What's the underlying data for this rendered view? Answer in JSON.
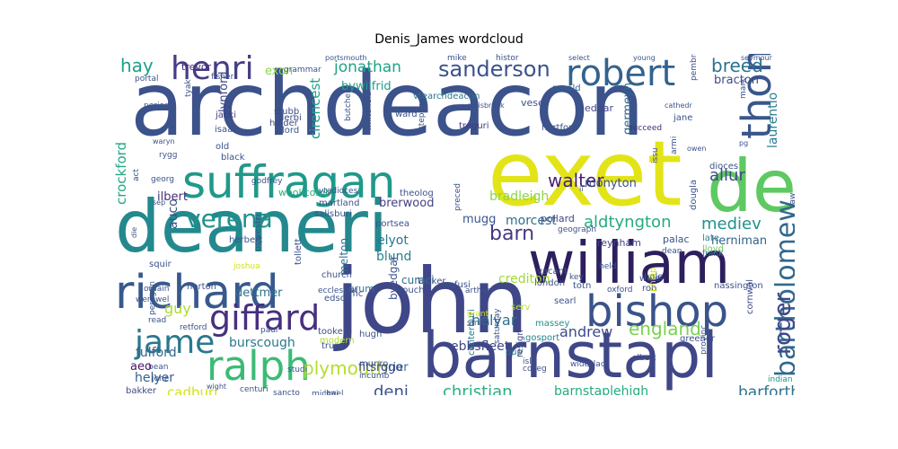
{
  "chart_data": {
    "type": "wordcloud",
    "title": "Denis_James wordcloud",
    "words": [
      {
        "text": "archdeacon",
        "color": "#3b528b"
      },
      {
        "text": "deaneri",
        "color": "#23898e"
      },
      {
        "text": "john",
        "color": "#3f4788"
      },
      {
        "text": "exet",
        "color": "#e3e418"
      },
      {
        "text": "barnstapl",
        "color": "#3f4788"
      },
      {
        "text": "william",
        "color": "#2d1f5e"
      },
      {
        "text": "suffragan",
        "color": "#1f998a"
      },
      {
        "text": "de",
        "color": "#5ec962"
      },
      {
        "text": "thoma",
        "color": "#39568c"
      },
      {
        "text": "richard",
        "color": "#38598c"
      },
      {
        "text": "bishop",
        "color": "#3a538b"
      },
      {
        "text": "ralph",
        "color": "#3bbb75"
      },
      {
        "text": "robert",
        "color": "#33638d"
      },
      {
        "text": "henri",
        "color": "#433e85"
      },
      {
        "text": "giffard",
        "color": "#46307e"
      },
      {
        "text": "jame",
        "color": "#2a788e"
      },
      {
        "text": "bartholomew",
        "color": "#31688e"
      },
      {
        "text": "verena",
        "color": "#20928c"
      },
      {
        "text": "plymouth",
        "color": "#b5de2b"
      },
      {
        "text": "roger",
        "color": "#404688"
      },
      {
        "text": "sanderson",
        "color": "#3b528b"
      },
      {
        "text": "england",
        "color": "#7ad151"
      },
      {
        "text": "barn",
        "color": "#453882"
      },
      {
        "text": "breed",
        "color": "#2c728e"
      },
      {
        "text": "jonathan",
        "color": "#20a386"
      },
      {
        "text": "christian",
        "color": "#29af7f"
      },
      {
        "text": "barforth",
        "color": "#2c728e"
      },
      {
        "text": "deni",
        "color": "#3b528b"
      },
      {
        "text": "walter",
        "color": "#481f70"
      },
      {
        "text": "guy",
        "color": "#addc30"
      },
      {
        "text": "hay",
        "color": "#1fa088"
      },
      {
        "text": "andrew",
        "color": "#3e4a89"
      },
      {
        "text": "mediev",
        "color": "#21918c"
      },
      {
        "text": "allur",
        "color": "#3e4989"
      },
      {
        "text": "laurentio",
        "color": "#287c8e"
      },
      {
        "text": "cadburi",
        "color": "#d2e21b"
      },
      {
        "text": "ebbsfleet",
        "color": "#3e4989"
      },
      {
        "text": "barnstaplehigh",
        "color": "#25ab82"
      },
      {
        "text": "aldtyngton",
        "color": "#25ab82"
      },
      {
        "text": "auco",
        "color": "#3b528b"
      },
      {
        "text": "helyar",
        "color": "#2c738e"
      },
      {
        "text": "crockford",
        "color": "#22a785"
      },
      {
        "text": "cirencest",
        "color": "#1fa187"
      },
      {
        "text": "bradleigh",
        "color": "#8bd646"
      },
      {
        "text": "burscough",
        "color": "#2a788e"
      },
      {
        "text": "helyer",
        "color": "#35608d"
      },
      {
        "text": "fulford",
        "color": "#33628d"
      },
      {
        "text": "elyot",
        "color": "#29798e"
      },
      {
        "text": "blund",
        "color": "#27808e"
      },
      {
        "text": "morcest",
        "color": "#2e6e8e"
      },
      {
        "text": "bracton",
        "color": "#3e4a89"
      },
      {
        "text": "brerwood",
        "color": "#433e85"
      },
      {
        "text": "ilbert",
        "color": "#46307e"
      },
      {
        "text": "grier",
        "color": "#2d718e"
      },
      {
        "text": "monyton",
        "color": "#3b528b"
      },
      {
        "text": "crediton",
        "color": "#a0da39"
      },
      {
        "text": "herniman",
        "color": "#33638d"
      },
      {
        "text": "exon",
        "color": "#8bd646"
      },
      {
        "text": "lynford",
        "color": "#3f4788"
      },
      {
        "text": "bywilfrid",
        "color": "#1f9e89"
      },
      {
        "text": "dettmer",
        "color": "#2e6f8e"
      },
      {
        "text": "aeo",
        "color": "#481769"
      },
      {
        "text": "mugg",
        "color": "#39568c"
      },
      {
        "text": "fitsrogo",
        "color": "#424086"
      },
      {
        "text": "germeyn",
        "color": "#32658e"
      },
      {
        "text": "curaci",
        "color": "#2e6f8e"
      },
      {
        "text": "byedgar",
        "color": "#3b528b"
      },
      {
        "text": "melton",
        "color": "#2c738e"
      },
      {
        "text": "trevor",
        "color": "#482677"
      },
      {
        "text": "bakker",
        "color": "#3e4a89"
      },
      {
        "text": "woollcomb",
        "color": "#27ad81"
      },
      {
        "text": "vtearchdeacon",
        "color": "#2a788e"
      },
      {
        "text": "pollard",
        "color": "#3f4788"
      },
      {
        "text": "reynham",
        "color": "#424086"
      },
      {
        "text": "palac",
        "color": "#3b528b"
      },
      {
        "text": "wele",
        "color": "#3d4d8a"
      },
      {
        "text": "gosport",
        "color": "#26828e"
      },
      {
        "text": "oup",
        "color": "#2d718e"
      },
      {
        "text": "hugh",
        "color": "#3b528b"
      },
      {
        "text": "orum",
        "color": "#2c738e"
      },
      {
        "text": "edgar",
        "color": "#404688"
      },
      {
        "text": "vesey",
        "color": "#3b528b"
      },
      {
        "text": "jacki",
        "color": "#453882"
      },
      {
        "text": "isaac",
        "color": "#3b528b"
      },
      {
        "text": "lord",
        "color": "#39568c"
      },
      {
        "text": "derbi",
        "color": "#3e4a89"
      },
      {
        "text": "stubb",
        "color": "#3e4a89"
      },
      {
        "text": "holder",
        "color": "#3e4a89"
      },
      {
        "text": "ward",
        "color": "#3b528b"
      },
      {
        "text": "treguri",
        "color": "#453882"
      },
      {
        "text": "ronald",
        "color": "#33638d"
      },
      {
        "text": "hertford",
        "color": "#3b528b"
      },
      {
        "text": "jane",
        "color": "#3b528b"
      },
      {
        "text": "succeed",
        "color": "#482878"
      },
      {
        "text": "dougla",
        "color": "#3b528b"
      },
      {
        "text": "late",
        "color": "#25848e"
      },
      {
        "text": "lloyd",
        "color": "#6ccd5a"
      },
      {
        "text": "frank",
        "color": "#2a788e"
      },
      {
        "text": "nassington",
        "color": "#3b528b"
      },
      {
        "text": "cornwal",
        "color": "#3e4a89"
      },
      {
        "text": "greener",
        "color": "#3b528b"
      },
      {
        "text": "provinc",
        "color": "#3b528b"
      },
      {
        "text": "albert",
        "color": "#3e4a89"
      },
      {
        "text": "indian",
        "color": "#20928c"
      },
      {
        "text": "wideslad",
        "color": "#3b528b"
      },
      {
        "text": "massey",
        "color": "#21918c"
      },
      {
        "text": "searl",
        "color": "#3b528b"
      },
      {
        "text": "rob",
        "color": "#3b528b"
      },
      {
        "text": "hole",
        "color": "#3b528b"
      },
      {
        "text": "philip",
        "color": "#d2e21b"
      },
      {
        "text": "held",
        "color": "#3b528b"
      },
      {
        "text": "dean",
        "color": "#3b528b"
      },
      {
        "text": "oxford",
        "color": "#3b528b"
      },
      {
        "text": "totn",
        "color": "#3b528b"
      },
      {
        "text": "london",
        "color": "#3b528b"
      },
      {
        "text": "vacant",
        "color": "#3b528b"
      },
      {
        "text": "key",
        "color": "#3b528b"
      },
      {
        "text": "geograph",
        "color": "#3b528b"
      },
      {
        "text": "resign",
        "color": "#3e4a89"
      },
      {
        "text": "serv",
        "color": "#b5de2b"
      },
      {
        "text": "saturday",
        "color": "#3b528b"
      },
      {
        "text": "canterburi",
        "color": "#2a788e"
      },
      {
        "text": "grant",
        "color": "#d2e21b"
      },
      {
        "text": "smith",
        "color": "#3b528b"
      },
      {
        "text": "isl",
        "color": "#3b528b"
      },
      {
        "text": "colleg",
        "color": "#3b528b"
      },
      {
        "text": "trefusi",
        "color": "#3b528b"
      },
      {
        "text": "arthur",
        "color": "#3b528b"
      },
      {
        "text": "zouch",
        "color": "#3b528b"
      },
      {
        "text": "tucker",
        "color": "#3b528b"
      },
      {
        "text": "offic",
        "color": "#3b528b"
      },
      {
        "text": "church",
        "color": "#3b528b"
      },
      {
        "text": "edson",
        "color": "#3b528b"
      },
      {
        "text": "tooker",
        "color": "#3b528b"
      },
      {
        "text": "modern",
        "color": "#addc30"
      },
      {
        "text": "truro",
        "color": "#3b528b"
      },
      {
        "text": "munro",
        "color": "#3b528b"
      },
      {
        "text": "incumb",
        "color": "#3b528b"
      },
      {
        "text": "sancto",
        "color": "#3b528b"
      },
      {
        "text": "michael",
        "color": "#3b528b"
      },
      {
        "text": "lewi",
        "color": "#3b528b"
      },
      {
        "text": "centuri",
        "color": "#3b528b"
      },
      {
        "text": "studi",
        "color": "#3b528b"
      },
      {
        "text": "bean",
        "color": "#3b528b"
      },
      {
        "text": "jone",
        "color": "#3b528b"
      },
      {
        "text": "wight",
        "color": "#3b528b"
      },
      {
        "text": "werewel",
        "color": "#3b528b"
      },
      {
        "text": "retford",
        "color": "#3b528b"
      },
      {
        "text": "read",
        "color": "#3b528b"
      },
      {
        "text": "ordain",
        "color": "#3b528b"
      },
      {
        "text": "squir",
        "color": "#3b528b"
      },
      {
        "text": "norton",
        "color": "#3b528b"
      },
      {
        "text": "joshua",
        "color": "#d2e21b"
      },
      {
        "text": "herbert",
        "color": "#3b528b"
      },
      {
        "text": "ecclesiast",
        "color": "#3b528b"
      },
      {
        "text": "peregrin",
        "color": "#3b528b"
      },
      {
        "text": "salisburi",
        "color": "#3b528b"
      },
      {
        "text": "oswestri",
        "color": "#3b528b"
      },
      {
        "text": "tollett",
        "color": "#3b528b"
      },
      {
        "text": "portsea",
        "color": "#3b528b"
      },
      {
        "text": "martland",
        "color": "#3b528b"
      },
      {
        "text": "vtedioces",
        "color": "#3b528b"
      },
      {
        "text": "theolog",
        "color": "#3b528b"
      },
      {
        "text": "preced",
        "color": "#3b528b"
      },
      {
        "text": "act",
        "color": "#3b528b"
      },
      {
        "text": "sep",
        "color": "#3b528b"
      },
      {
        "text": "georg",
        "color": "#3b528b"
      },
      {
        "text": "rygg",
        "color": "#3b528b"
      },
      {
        "text": "waryn",
        "color": "#3b528b"
      },
      {
        "text": "old",
        "color": "#3b528b"
      },
      {
        "text": "black",
        "color": "#3b528b"
      },
      {
        "text": "godfrey",
        "color": "#3b528b"
      },
      {
        "text": "period",
        "color": "#3b528b"
      },
      {
        "text": "tyak",
        "color": "#3b528b"
      },
      {
        "text": "fisher",
        "color": "#3b528b"
      },
      {
        "text": "portal",
        "color": "#3b528b"
      },
      {
        "text": "grammar",
        "color": "#3b528b"
      },
      {
        "text": "portsmouth",
        "color": "#3b528b"
      },
      {
        "text": "butcher",
        "color": "#3b528b"
      },
      {
        "text": "whitefield",
        "color": "#3b528b"
      },
      {
        "text": "mike",
        "color": "#3b528b"
      },
      {
        "text": "histor",
        "color": "#3b528b"
      },
      {
        "text": "select",
        "color": "#3b528b"
      },
      {
        "text": "young",
        "color": "#3b528b"
      },
      {
        "text": "seymour",
        "color": "#3b528b"
      },
      {
        "text": "cathedr",
        "color": "#3b528b"
      },
      {
        "text": "mark",
        "color": "#3b528b"
      },
      {
        "text": "pembrok",
        "color": "#3b528b"
      },
      {
        "text": "carisbrook",
        "color": "#3b528b"
      },
      {
        "text": "stephen",
        "color": "#3b528b"
      },
      {
        "text": "armi",
        "color": "#3b528b"
      },
      {
        "text": "pg",
        "color": "#3b528b"
      },
      {
        "text": "owen",
        "color": "#3b528b"
      },
      {
        "text": "dioces",
        "color": "#3b528b"
      },
      {
        "text": "law",
        "color": "#3b528b"
      },
      {
        "text": "issu",
        "color": "#3b528b"
      },
      {
        "text": "ii",
        "color": "#3b528b"
      },
      {
        "text": "die",
        "color": "#3b528b"
      },
      {
        "text": "paul",
        "color": "#3b528b"
      }
    ]
  }
}
